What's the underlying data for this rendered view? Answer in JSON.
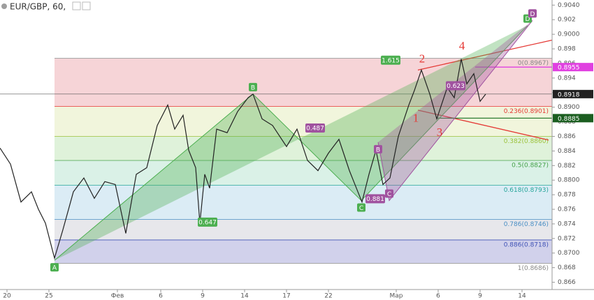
{
  "chart_data": {
    "type": "line",
    "title": "EUR/GBP, 60,",
    "color": "#222222",
    "xlim": [
      0,
      790
    ],
    "ylim": [
      0.865,
      0.9047
    ],
    "xticks": [
      {
        "value": 10,
        "label": "20"
      },
      {
        "value": 70,
        "label": "25"
      },
      {
        "value": 168,
        "label": "Фев"
      },
      {
        "value": 230,
        "label": "6"
      },
      {
        "value": 290,
        "label": "9"
      },
      {
        "value": 350,
        "label": "14"
      },
      {
        "value": 410,
        "label": "17"
      },
      {
        "value": 470,
        "label": "22"
      },
      {
        "value": 567,
        "label": "Мар"
      },
      {
        "value": 627,
        "label": "6"
      },
      {
        "value": 687,
        "label": "9"
      },
      {
        "value": 747,
        "label": "14"
      }
    ],
    "yticks": [
      {
        "value": 0.904,
        "label": "0.9040"
      },
      0.902,
      {
        "value": 0.9,
        "label": "0.9000"
      },
      0.898,
      0.896,
      0.894,
      0.892,
      {
        "value": 0.89,
        "label": "0.8900"
      },
      0.888,
      0.886,
      0.884,
      0.882,
      {
        "value": 0.88,
        "label": "0.8800"
      },
      0.878,
      0.876,
      0.874,
      0.872,
      {
        "value": 0.87,
        "label": "0.8700"
      },
      0.868,
      0.866
    ],
    "x": [
      0,
      15,
      30,
      45,
      55,
      65,
      78,
      90,
      105,
      120,
      135,
      150,
      165,
      180,
      195,
      210,
      225,
      240,
      250,
      262,
      270,
      280,
      286,
      293,
      300,
      310,
      325,
      340,
      355,
      362,
      375,
      390,
      410,
      425,
      440,
      455,
      470,
      485,
      500,
      510,
      518,
      528,
      538,
      548,
      558,
      570,
      585,
      593,
      603,
      615,
      625,
      640,
      650,
      660,
      668,
      678,
      687,
      695
    ],
    "values": [
      0.8844,
      0.8822,
      0.877,
      0.8784,
      0.876,
      0.8741,
      0.8693,
      0.8732,
      0.8784,
      0.8803,
      0.8775,
      0.8798,
      0.8794,
      0.8727,
      0.8808,
      0.8817,
      0.8875,
      0.8903,
      0.887,
      0.8889,
      0.8841,
      0.8817,
      0.8741,
      0.8808,
      0.8789,
      0.887,
      0.8865,
      0.8894,
      0.8913,
      0.8918,
      0.8884,
      0.8875,
      0.8846,
      0.887,
      0.8827,
      0.8813,
      0.8837,
      0.8856,
      0.8813,
      0.8789,
      0.877,
      0.8808,
      0.8841,
      0.8794,
      0.8803,
      0.886,
      0.8903,
      0.8923,
      0.8951,
      0.8918,
      0.8884,
      0.8927,
      0.8913,
      0.8966,
      0.8932,
      0.8946,
      0.8908,
      0.8918
    ],
    "fib_levels": [
      {
        "label": "0(0.8967)",
        "value": 0.8967,
        "color": "#888888",
        "fill": "#f4cdd0"
      },
      {
        "label": "0.236(0.8901)",
        "value": 0.8901,
        "color": "#e53935",
        "fill": "#eef3d6"
      },
      {
        "label": "0.382(0.8860)",
        "value": 0.886,
        "color": "#9cc23a",
        "fill": "#d9f0d4"
      },
      {
        "label": "0.5(0.8827)",
        "value": 0.8827,
        "color": "#43a047",
        "fill": "#d3efe3"
      },
      {
        "label": "0.618(0.8793)",
        "value": 0.8793,
        "color": "#26a69a",
        "fill": "#d5e9f3"
      },
      {
        "label": "0.786(0.8746)",
        "value": 0.8746,
        "color": "#4a8fc4",
        "fill": "#e3e3e7"
      },
      {
        "label": "0.886(0.8718)",
        "value": 0.8718,
        "color": "#3f51b5",
        "fill": "#c9c9e8"
      },
      {
        "label": "1(0.8686)",
        "value": 0.8686,
        "color": "#888888"
      }
    ],
    "fib_start": 78,
    "patterns": [
      {
        "color": "#4caf50",
        "points": [
          {
            "label": "A",
            "x": 78,
            "y": 0.869
          },
          {
            "label": "B",
            "x": 362,
            "y": 0.8918
          },
          {
            "label": "C",
            "x": 517,
            "y": 0.8772
          },
          {
            "label": "D",
            "x": 755,
            "y": 0.9012
          }
        ]
      },
      {
        "color": "#a0529f",
        "points": [
          {
            "label": "B",
            "x": 541,
            "y": 0.8852
          },
          {
            "label": "C",
            "x": 557,
            "y": 0.8772
          },
          {
            "label": "D",
            "x": 762,
            "y": 0.9019
          }
        ]
      }
    ],
    "ratio_labels": [
      {
        "text": "0.647",
        "x": 297,
        "y": 0.8742,
        "color": "#4caf50"
      },
      {
        "text": "0.487",
        "x": 451,
        "y": 0.8871,
        "color": "#a0529f"
      },
      {
        "text": "0.881",
        "x": 537,
        "y": 0.8774,
        "color": "#a0529f"
      },
      {
        "text": "1.615",
        "x": 559,
        "y": 0.8964,
        "color": "#4caf50"
      },
      {
        "text": "0.623",
        "x": 652,
        "y": 0.8929,
        "color": "#a0529f"
      }
    ],
    "wave_labels": [
      {
        "text": "1",
        "x": 595,
        "y": 0.8884
      },
      {
        "text": "2",
        "x": 604,
        "y": 0.8965
      },
      {
        "text": "3",
        "x": 629,
        "y": 0.8864
      },
      {
        "text": "4",
        "x": 661,
        "y": 0.8983
      }
    ],
    "lines": [
      {
        "color": "#e53935",
        "x": [
          598,
          790
        ],
        "y": [
          0.8951,
          0.8992
        ]
      },
      {
        "color": "#e53935",
        "x": [
          598,
          785
        ],
        "y": [
          0.8896,
          0.8855
        ]
      },
      {
        "color": "#e040e0",
        "x": [
          680,
          790
        ],
        "y": [
          0.8955,
          0.8955
        ]
      },
      {
        "color": "#2e7d32",
        "x": [
          625,
          790
        ],
        "y": [
          0.8885,
          0.8885
        ]
      },
      {
        "color": "#555555",
        "x": [
          0,
          790
        ],
        "y": [
          0.8918,
          0.8918
        ]
      }
    ],
    "price_labels": [
      {
        "value": 0.8955,
        "label": "0.8955",
        "color": "#e040e0"
      },
      {
        "value": 0.8918,
        "label": "0.8918",
        "color": "#222222"
      },
      {
        "value": 0.8885,
        "label": "0.8885",
        "color": "#1b5e20"
      }
    ]
  }
}
